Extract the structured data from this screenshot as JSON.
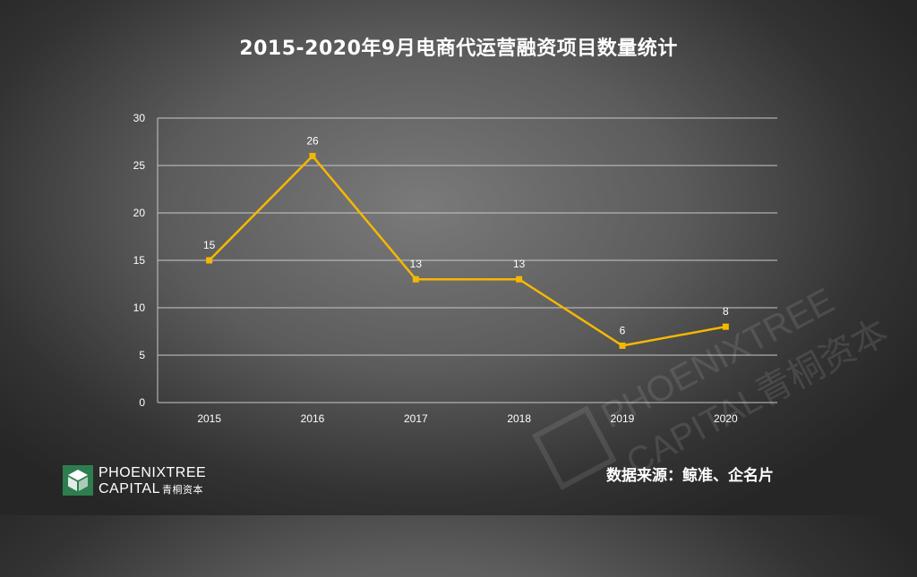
{
  "chart_data": {
    "type": "line",
    "title": "2015-2020年9月电商代运营融资项目数量统计",
    "categories": [
      "2015",
      "2016",
      "2017",
      "2018",
      "2019",
      "2020"
    ],
    "series": [
      {
        "values": [
          15,
          26,
          13,
          13,
          6,
          8
        ],
        "color": "#f5b800"
      }
    ],
    "data_labels": [
      "15",
      "26",
      "13",
      "13",
      "6",
      "8"
    ],
    "ylim": [
      0,
      30
    ],
    "yticks": [
      "0",
      "5",
      "10",
      "15",
      "20",
      "25",
      "30"
    ],
    "grid": true,
    "legend": "none"
  },
  "footer": {
    "source": "数据来源：鲸准、企名片",
    "logo_name": "PHOENIXTREE",
    "logo_sub": "CAPITAL",
    "logo_cn": "青桐资本"
  },
  "watermark": {
    "line1": "PHOENIXTREE",
    "line2": "CAPITAL青桐资本"
  },
  "colors": {
    "line": "#f5b800",
    "grid": "#c8c8c8",
    "logo_green": "#2e7d4f"
  }
}
